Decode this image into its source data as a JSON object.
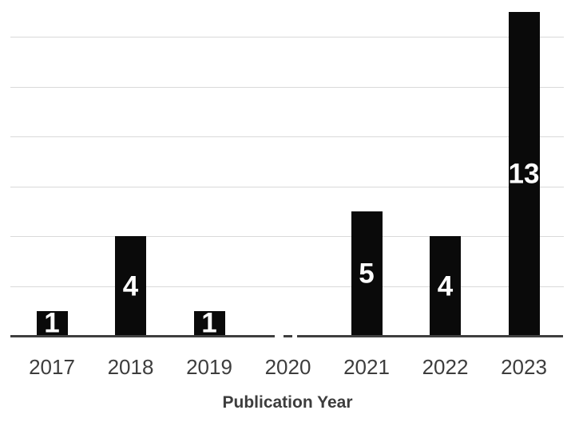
{
  "chart_data": {
    "type": "bar",
    "title": "",
    "xlabel": "Publication Year",
    "ylabel": "",
    "categories": [
      "2017",
      "2018",
      "2019",
      "2020",
      "2021",
      "2022",
      "2023"
    ],
    "values": [
      1,
      4,
      1,
      0,
      5,
      4,
      13
    ],
    "data_labels": [
      "1",
      "4",
      "1",
      "",
      "5",
      "4",
      "13"
    ],
    "ylim": [
      0,
      13
    ],
    "gridline_values": [
      2,
      4,
      6,
      8,
      10,
      12
    ],
    "grid": "horizontal-only",
    "legend": "none",
    "axis_break_near": "2020",
    "colors": {
      "bar": "#0a0a0a",
      "data_label": "#ffffff",
      "gridline": "#d9d9d9",
      "axis": "#3f3f3f",
      "tick_label": "#3d3d3d",
      "x_axis_title": "#3d3d3d",
      "background": "#ffffff"
    }
  }
}
